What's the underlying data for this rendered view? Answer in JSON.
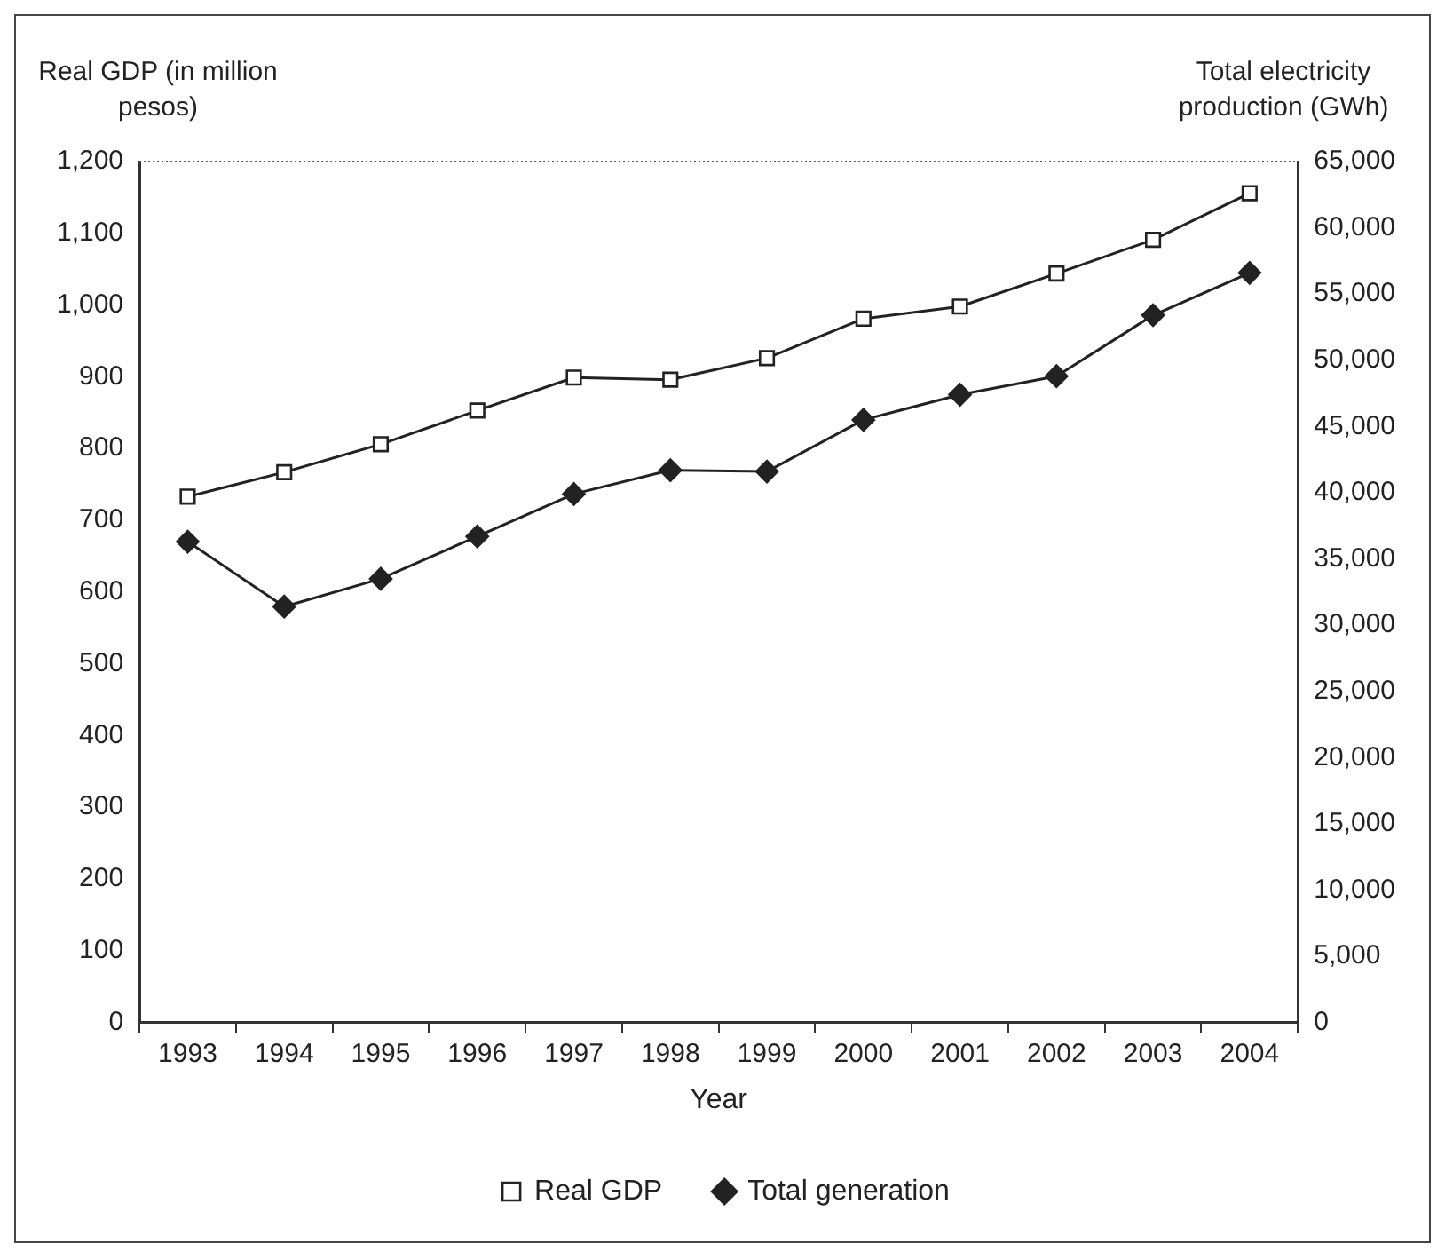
{
  "chart_data": {
    "type": "line",
    "xlabel": "Year",
    "ylabel": "Real GDP (in million pesos)",
    "y2label": "Total electricity production (GWh)",
    "categories": [
      "1993",
      "1994",
      "1995",
      "1996",
      "1997",
      "1998",
      "1999",
      "2000",
      "2001",
      "2002",
      "2003",
      "2004"
    ],
    "series": [
      {
        "name": "Real GDP",
        "color": "#222222",
        "marker": "square",
        "values": [
          733,
          767,
          806,
          853,
          899,
          896,
          926,
          981,
          998,
          1044,
          1091,
          1156
        ]
      },
      {
        "name": "Total generation",
        "color": "#222222",
        "marker": "diamond",
        "axis": "y2",
        "values": [
          36300,
          31400,
          33500,
          36700,
          39900,
          41700,
          41600,
          45500,
          47400,
          48800,
          53400,
          56600
        ]
      }
    ],
    "ylim": [
      0,
      1200
    ],
    "yticks": [
      0,
      100,
      200,
      300,
      400,
      500,
      600,
      700,
      800,
      900,
      {
        "value": 1000,
        "label": "1,000"
      },
      {
        "value": 1100,
        "label": "1,100"
      },
      {
        "value": 1200,
        "label": "1,200"
      }
    ],
    "y2lim": [
      0,
      65000
    ],
    "y2ticks": [
      0,
      {
        "value": 5000,
        "label": "5,000"
      },
      {
        "value": 10000,
        "label": "10,000"
      },
      {
        "value": 15000,
        "label": "15,000"
      },
      {
        "value": 20000,
        "label": "20,000"
      },
      {
        "value": 25000,
        "label": "25,000"
      },
      {
        "value": 30000,
        "label": "30,000"
      },
      {
        "value": 35000,
        "label": "35,000"
      },
      {
        "value": 40000,
        "label": "40,000"
      },
      {
        "value": 45000,
        "label": "45,000"
      },
      {
        "value": 50000,
        "label": "50,000"
      },
      {
        "value": 55000,
        "label": "55,000"
      },
      {
        "value": 60000,
        "label": "60,000"
      },
      {
        "value": 65000,
        "label": "65,000"
      }
    ],
    "grid": false,
    "legend": "bottom",
    "line_style": "solid"
  }
}
